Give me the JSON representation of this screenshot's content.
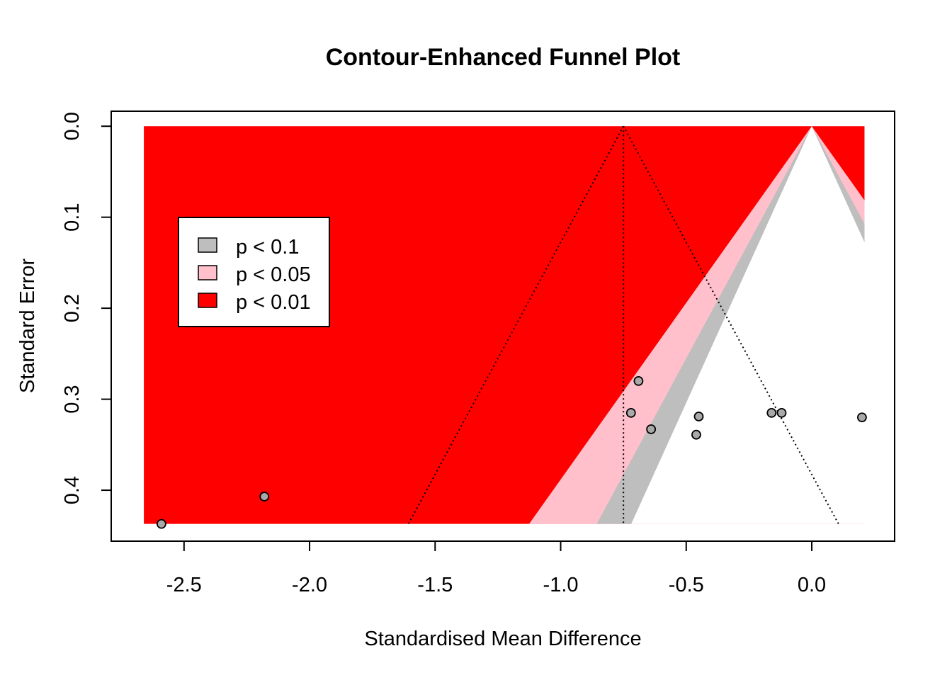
{
  "chart_data": {
    "type": "scatter",
    "title": "Contour-Enhanced Funnel Plot",
    "xlabel": "Standardised Mean Difference",
    "ylabel": "Standard Error",
    "xlim": [
      -2.79,
      0.33
    ],
    "ylim": [
      0.456,
      -0.0165
    ],
    "y_reversed": true,
    "x_ticks": [
      -2.5,
      -2.0,
      -1.5,
      -1.0,
      -0.5,
      0.0
    ],
    "x_tick_labels": [
      "-2.5",
      "-2.0",
      "-1.5",
      "-1.0",
      "-0.5",
      "0.0"
    ],
    "y_ticks": [
      0.0,
      0.1,
      0.2,
      0.3,
      0.4
    ],
    "y_tick_labels": [
      "0.0",
      "0.1",
      "0.2",
      "0.3",
      "0.4"
    ],
    "pooled_estimate": -0.75,
    "contour_center": 0.0,
    "contour_region": {
      "x_min": -2.66,
      "x_max": 0.21,
      "se_max": 0.437
    },
    "contours": [
      {
        "label": "p < 0.1",
        "z": 1.645,
        "color": "#BEBEBE"
      },
      {
        "label": "p < 0.05",
        "z": 1.96,
        "color": "#FFC0CB"
      },
      {
        "label": "p < 0.01",
        "z": 2.576,
        "color": "#FF0000"
      }
    ],
    "legend": {
      "position": "top-left",
      "entries": [
        "p < 0.1",
        "p < 0.05",
        "p < 0.01"
      ]
    },
    "points": [
      {
        "x": -2.59,
        "y": 0.437
      },
      {
        "x": -2.18,
        "y": 0.407
      },
      {
        "x": -0.69,
        "y": 0.28
      },
      {
        "x": -0.72,
        "y": 0.315
      },
      {
        "x": -0.64,
        "y": 0.333
      },
      {
        "x": -0.45,
        "y": 0.319
      },
      {
        "x": -0.46,
        "y": 0.339
      },
      {
        "x": -0.16,
        "y": 0.315
      },
      {
        "x": -0.12,
        "y": 0.315
      },
      {
        "x": 0.2,
        "y": 0.32
      }
    ],
    "point_color": "#A9A9A9",
    "grid": false
  }
}
